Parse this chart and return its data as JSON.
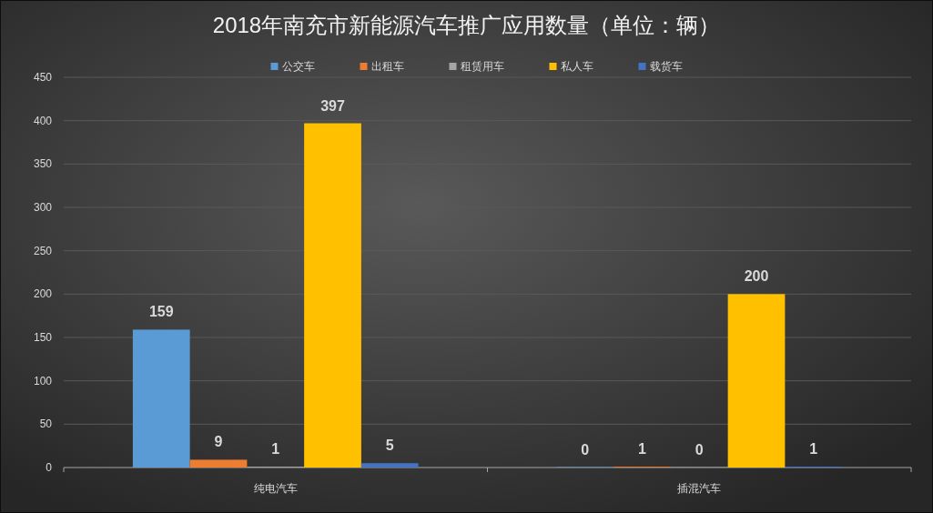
{
  "chart_data": {
    "type": "bar",
    "title": "2018年南充市新能源汽车推广应用数量（单位：辆）",
    "categories": [
      "纯电汽车",
      "插混汽车"
    ],
    "series": [
      {
        "name": "公交车",
        "color": "#5b9bd5",
        "values": [
          159,
          0
        ]
      },
      {
        "name": "出租车",
        "color": "#ed7d31",
        "values": [
          9,
          1
        ]
      },
      {
        "name": "租赁用车",
        "color": "#a5a5a5",
        "values": [
          1,
          0
        ]
      },
      {
        "name": "私人车",
        "color": "#ffc000",
        "values": [
          397,
          200
        ]
      },
      {
        "name": "载货车",
        "color": "#4472c4",
        "values": [
          5,
          1
        ]
      }
    ],
    "ylim": [
      0,
      450
    ],
    "yticks": [
      0,
      50,
      100,
      150,
      200,
      250,
      300,
      350,
      400,
      450
    ],
    "grid": "y",
    "legend": "top",
    "data_labels": true
  }
}
